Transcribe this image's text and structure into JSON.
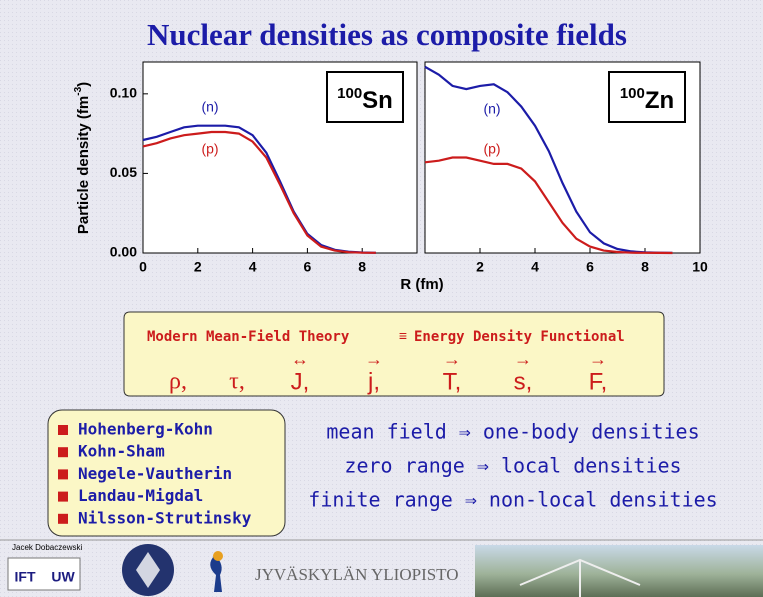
{
  "title": "Nuclear densities as composite fields",
  "chart_data": [
    {
      "type": "line",
      "label_mass": "100",
      "label_symbol": "Sn",
      "ylabel": "Particle density (fm",
      "ylabel_exp": "-3",
      "ylabel_end": ")",
      "x": [
        0,
        0.5,
        1,
        1.5,
        2,
        2.5,
        3,
        3.5,
        4,
        4.5,
        5,
        5.5,
        6,
        6.5,
        7,
        7.5,
        8,
        8.5
      ],
      "series": [
        {
          "name": "(n)",
          "color": "#1c1ca8",
          "values": [
            0.071,
            0.073,
            0.076,
            0.079,
            0.08,
            0.08,
            0.08,
            0.079,
            0.074,
            0.063,
            0.045,
            0.026,
            0.012,
            0.005,
            0.002,
            0.0008,
            0.0003,
            0.0001
          ]
        },
        {
          "name": "(p)",
          "color": "#cc1c1c",
          "values": [
            0.067,
            0.069,
            0.072,
            0.074,
            0.075,
            0.076,
            0.076,
            0.075,
            0.07,
            0.06,
            0.043,
            0.025,
            0.011,
            0.004,
            0.0015,
            0.0005,
            0.0002,
            0.0001
          ]
        }
      ],
      "xlim": [
        0,
        10
      ],
      "xticks": [
        0,
        2,
        4,
        6,
        8
      ],
      "ylim": [
        0,
        0.12
      ],
      "yticks": [
        {
          "value": 0,
          "label": "0.00"
        },
        {
          "value": 0.05,
          "label": "0.05"
        },
        {
          "value": 0.1,
          "label": "0.10"
        }
      ]
    },
    {
      "type": "line",
      "label_mass": "100",
      "label_symbol": "Zn",
      "xlabel": "R (fm)",
      "x": [
        0,
        0.5,
        1,
        1.5,
        2,
        2.5,
        3,
        3.5,
        4,
        4.5,
        5,
        5.5,
        6,
        6.5,
        7,
        7.5,
        8,
        8.5,
        9
      ],
      "series": [
        {
          "name": "(n)",
          "color": "#1c1ca8",
          "values": [
            0.117,
            0.112,
            0.105,
            0.103,
            0.105,
            0.106,
            0.101,
            0.092,
            0.08,
            0.064,
            0.044,
            0.026,
            0.013,
            0.006,
            0.0025,
            0.001,
            0.0004,
            0.0002,
            0.0001
          ]
        },
        {
          "name": "(p)",
          "color": "#cc1c1c",
          "values": [
            0.057,
            0.058,
            0.06,
            0.06,
            0.058,
            0.056,
            0.056,
            0.053,
            0.045,
            0.032,
            0.019,
            0.009,
            0.004,
            0.0015,
            0.0006,
            0.0002,
            0.0001,
            5e-05,
            2e-05
          ]
        }
      ],
      "xlim": [
        0,
        10
      ],
      "xticks": [
        2,
        4,
        6,
        8,
        10
      ],
      "ylim": [
        0,
        0.12
      ]
    }
  ],
  "scroll": {
    "theory": "Modern Mean-Field Theory",
    "equiv": "≡",
    "functional": "Energy Density Functional",
    "fields": [
      {
        "symbol": "ρ,"
      },
      {
        "symbol": "τ,"
      },
      {
        "accent": "↔",
        "symbol": "J,"
      },
      {
        "accent": "→",
        "symbol": "j,"
      },
      {
        "accent": "→",
        "symbol": "T,"
      },
      {
        "accent": "→",
        "symbol": "s,"
      },
      {
        "accent": "→",
        "symbol": "F,"
      }
    ]
  },
  "methods": [
    "Hohenberg-Kohn",
    "Kohn-Sham",
    "Negele-Vautherin",
    "Landau-Migdal",
    "Nilsson-Strutinsky"
  ],
  "statements": [
    "mean field ⇒ one-body densities",
    "zero range ⇒ local densities",
    "finite range ⇒ non-local densities"
  ],
  "footer": {
    "author": "Jacek Dobaczewski",
    "ift": "IFT",
    "uw": "UW",
    "university": "JYVÄSKYLÄN YLIOPISTO"
  }
}
